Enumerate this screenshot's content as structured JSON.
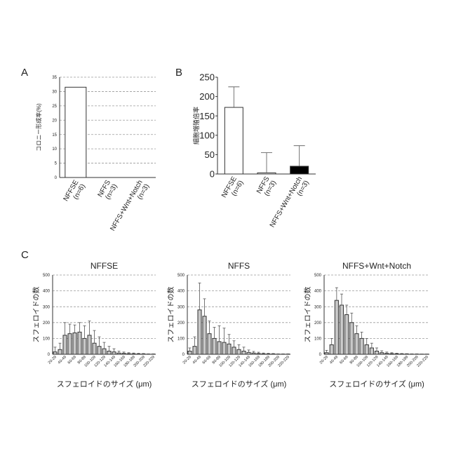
{
  "panels": {
    "A": {
      "letter": "A"
    },
    "B": {
      "letter": "B"
    },
    "C": {
      "letter": "C"
    }
  },
  "chart_data": [
    {
      "panel": "A",
      "type": "bar",
      "ylabel": "コロニー形成率(%)",
      "ylim": [
        0,
        35
      ],
      "yticks": [
        0,
        5,
        10,
        15,
        20,
        25,
        30,
        35
      ],
      "grid": true,
      "categories": [
        "NFFSE\n(n=6)",
        "NFFS\n(n=3)",
        "NFFS+Wnt+Notch\n(n=3)"
      ],
      "values": [
        31.5,
        0,
        0
      ],
      "colors": [
        "#ffffff",
        "#ffffff",
        "#ffffff"
      ]
    },
    {
      "panel": "B",
      "type": "bar",
      "ylabel": "細胞増殖倍率",
      "ylim": [
        0,
        250
      ],
      "yticks": [
        0,
        50,
        100,
        150,
        200,
        250
      ],
      "grid": false,
      "categories": [
        "NFFSE\n(n=6)",
        "NFFS\n(n=3)",
        "NFFS+Wnt+Notch\n(n=3)"
      ],
      "values": [
        172,
        3,
        20
      ],
      "errors": [
        53,
        52,
        53
      ],
      "colors": [
        "#ffffff",
        "#ffffff",
        "#000000"
      ]
    },
    {
      "panel": "C1",
      "type": "bar",
      "title": "NFFSE",
      "xlabel": "スフェロイドのサイズ (μm)",
      "ylabel": "スフェロイドの数",
      "ylim": [
        0,
        500
      ],
      "yticks": [
        0,
        100,
        200,
        300,
        400,
        500
      ],
      "grid": true,
      "categories": [
        "20-29",
        "30-39",
        "40-49",
        "50-59",
        "60-69",
        "70-79",
        "80-89",
        "90-99",
        "100-109",
        "110-119",
        "120-129",
        "130-139",
        "140-149",
        "150-159",
        "160-169",
        "170-179",
        "180-189",
        "190-199",
        "200-209",
        "210-219",
        "220-229"
      ],
      "tick_labels": [
        "20-29",
        "40-49",
        "60-69",
        "80-89",
        "100-109",
        "120-129",
        "140-149",
        "160-169",
        "180-189",
        "200-209",
        "220-229"
      ],
      "values": [
        15,
        30,
        120,
        130,
        135,
        140,
        100,
        120,
        70,
        50,
        35,
        20,
        15,
        8,
        6,
        4,
        3,
        2,
        2,
        1,
        1
      ],
      "errors": [
        30,
        40,
        80,
        60,
        50,
        60,
        80,
        90,
        80,
        60,
        40,
        30,
        20,
        12,
        8,
        6,
        5,
        4,
        3,
        2,
        2
      ]
    },
    {
      "panel": "C2",
      "type": "bar",
      "title": "NFFS",
      "xlabel": "スフェロイドのサイズ (μm)",
      "ylabel": "スフェロイドの数",
      "ylim": [
        0,
        500
      ],
      "yticks": [
        0,
        100,
        200,
        300,
        400,
        500
      ],
      "grid": true,
      "categories": [
        "20-29",
        "30-39",
        "40-49",
        "50-59",
        "60-69",
        "70-79",
        "80-89",
        "90-99",
        "100-109",
        "110-119",
        "120-129",
        "130-139",
        "140-149",
        "150-159",
        "160-169",
        "170-179",
        "180-189",
        "190-199",
        "200-209",
        "210-219",
        "220-229"
      ],
      "tick_labels": [
        "20-29",
        "40-49",
        "60-69",
        "80-89",
        "100-109",
        "120-129",
        "140-149",
        "160-169",
        "180-189",
        "200-209",
        "220-229"
      ],
      "values": [
        20,
        50,
        280,
        240,
        130,
        100,
        80,
        75,
        65,
        45,
        30,
        20,
        12,
        8,
        5,
        3,
        2,
        2,
        1,
        1,
        1
      ],
      "errors": [
        20,
        60,
        170,
        110,
        80,
        70,
        100,
        90,
        60,
        40,
        30,
        25,
        15,
        10,
        8,
        5,
        4,
        3,
        2,
        2,
        2
      ]
    },
    {
      "panel": "C3",
      "type": "bar",
      "title": "NFFS+Wnt+Notch",
      "xlabel": "スフェロイドのサイズ (μm)",
      "ylabel": "スフェロイドの数",
      "ylim": [
        0,
        500
      ],
      "yticks": [
        0,
        100,
        200,
        300,
        400,
        500
      ],
      "grid": true,
      "categories": [
        "20-29",
        "30-39",
        "40-49",
        "50-59",
        "60-69",
        "70-79",
        "80-89",
        "90-99",
        "100-109",
        "110-119",
        "120-129",
        "130-139",
        "140-149",
        "150-159",
        "160-169",
        "170-179",
        "180-189",
        "190-199",
        "200-209",
        "210-219",
        "220-229"
      ],
      "tick_labels": [
        "20-29",
        "40-49",
        "60-69",
        "80-89",
        "100-109",
        "120-129",
        "140-149",
        "160-169",
        "180-189",
        "200-209",
        "220-229"
      ],
      "values": [
        10,
        60,
        340,
        310,
        250,
        200,
        130,
        100,
        60,
        40,
        20,
        10,
        6,
        4,
        3,
        2,
        2,
        1,
        1,
        1,
        1
      ],
      "errors": [
        15,
        40,
        80,
        70,
        60,
        60,
        50,
        40,
        40,
        30,
        20,
        12,
        8,
        6,
        4,
        3,
        2,
        2,
        2,
        1,
        1
      ]
    }
  ]
}
